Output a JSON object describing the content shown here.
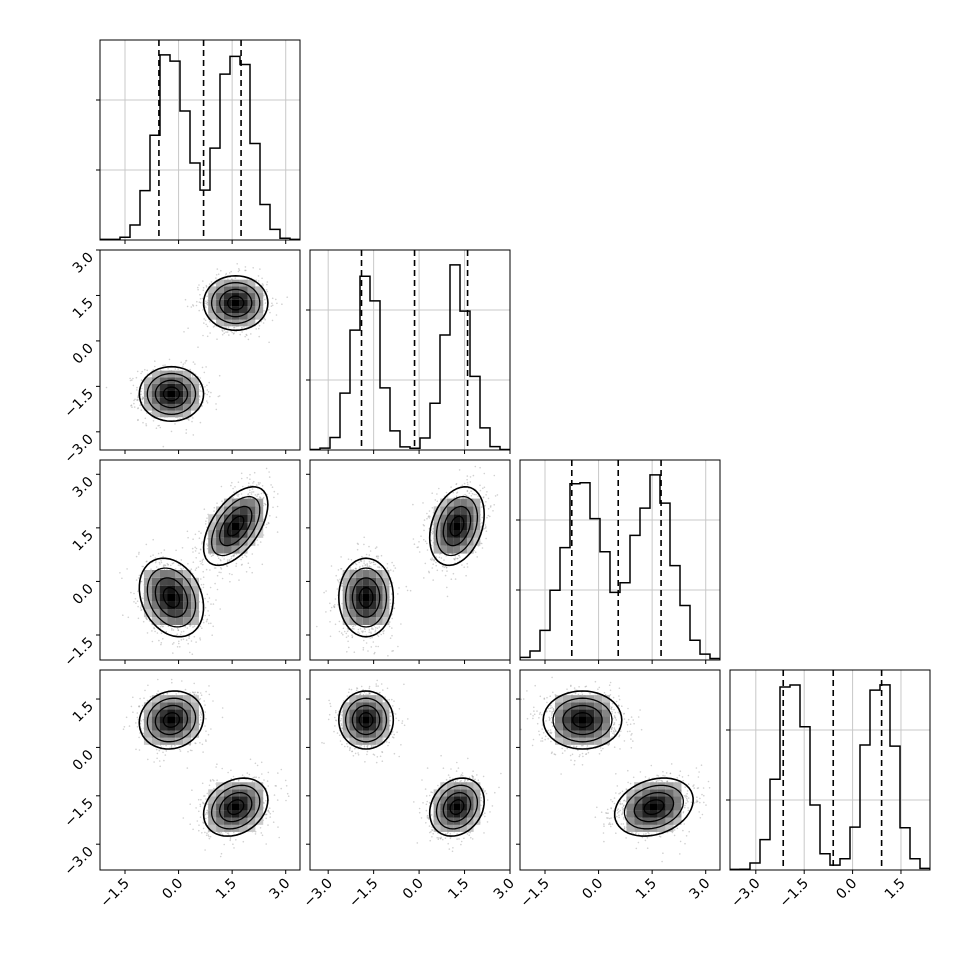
{
  "chart_data": {
    "type": "corner",
    "ndim": 4,
    "grid": true,
    "params": [
      {
        "range": [
          -2.2,
          3.4
        ],
        "ticks": [
          -1.5,
          0.0,
          1.5,
          3.0
        ],
        "tick_labels": [
          "−1.5",
          "0.0",
          "1.5",
          "3.0"
        ],
        "quantiles": [
          -0.55,
          0.7,
          1.75
        ],
        "modes": [
          {
            "center": -0.2,
            "sigma": 0.45,
            "weight": 1
          },
          {
            "center": 1.6,
            "sigma": 0.45,
            "weight": 1.05
          }
        ]
      },
      {
        "range": [
          -3.6,
          3.0
        ],
        "ticks": [
          -3.0,
          -1.5,
          0.0,
          1.5,
          3.0
        ],
        "tick_labels": [
          "−3.0",
          "−1.5",
          "0.0",
          "1.5",
          "3.0"
        ],
        "quantiles": [
          -1.9,
          -0.15,
          1.6
        ],
        "modes": [
          {
            "center": -1.75,
            "sigma": 0.45,
            "weight": 1
          },
          {
            "center": 1.25,
            "sigma": 0.45,
            "weight": 1
          }
        ]
      },
      {
        "range": [
          -2.2,
          3.4
        ],
        "ticks": [
          -1.5,
          0.0,
          1.5,
          3.0
        ],
        "tick_labels": [
          "−1.5",
          "0.0",
          "1.5",
          "3.0"
        ],
        "quantiles": [
          -0.75,
          0.55,
          1.75
        ],
        "modes": [
          {
            "center": -0.45,
            "sigma": 0.55,
            "weight": 1
          },
          {
            "center": 1.55,
            "sigma": 0.55,
            "weight": 1
          }
        ]
      },
      {
        "range": [
          -3.8,
          2.4
        ],
        "ticks": [
          -3.0,
          -1.5,
          0.0,
          1.5
        ],
        "tick_labels": [
          "−3.0",
          "−1.5",
          "0.0",
          "1.5"
        ],
        "quantiles": [
          -2.15,
          -0.6,
          0.9
        ],
        "modes": [
          {
            "center": -1.85,
            "sigma": 0.45,
            "weight": 1
          },
          {
            "center": 0.85,
            "sigma": 0.45,
            "weight": 1
          }
        ]
      }
    ],
    "clusters": [
      {
        "mean": [
          -0.2,
          -1.75,
          -0.45,
          0.85
        ],
        "sd": [
          0.45,
          0.45,
          0.55,
          0.45
        ]
      },
      {
        "mean": [
          1.6,
          1.25,
          1.55,
          -1.85
        ],
        "sd": [
          0.45,
          0.45,
          0.55,
          0.45
        ]
      }
    ],
    "correlations": {
      "0-2": [
        -0.25,
        0.55
      ],
      "1-2": [
        0.0,
        0.3
      ],
      "0-3": [
        0.1,
        0.25
      ],
      "1-3": [
        0.0,
        0.2
      ],
      "2-3": [
        0.0,
        0.25
      ]
    },
    "contour_levels": [
      0.5,
      1.0,
      1.5,
      2.0
    ],
    "samples_per_cluster": 900
  }
}
